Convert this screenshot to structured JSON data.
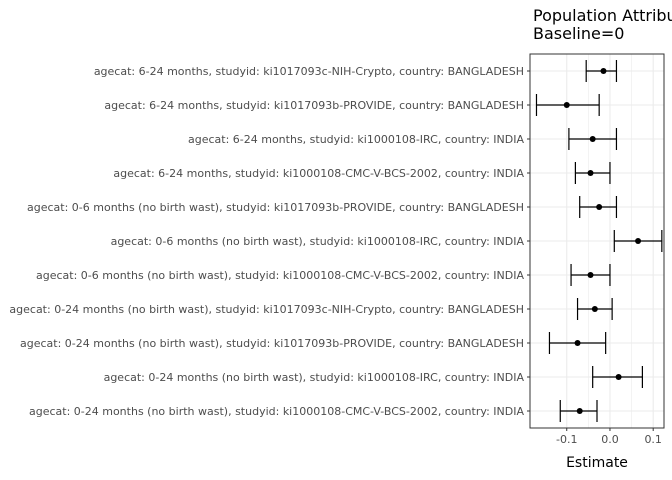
{
  "chart_data": {
    "type": "forest",
    "title_lines": [
      "Population Attributable",
      "Baseline=0"
    ],
    "xlabel": "Estimate",
    "ylabel": "",
    "xlim": [
      -0.185,
      0.125
    ],
    "x_ticks": [
      -0.1,
      0.0,
      0.1
    ],
    "x_tick_labels": [
      "-0.1",
      "0.0",
      "0.1"
    ],
    "grid": true,
    "colors": {
      "grid": "#ebebeb",
      "panel_border": "#333333",
      "point": "#000000"
    },
    "rows": [
      {
        "label": "agecat: 6-24 months, studyid: ki1017093c-NIH-Crypto, country: BANGLADESH",
        "estimate": -0.015,
        "lower": -0.055,
        "upper": 0.015
      },
      {
        "label": "agecat: 6-24 months, studyid: ki1017093b-PROVIDE, country: BANGLADESH",
        "estimate": -0.1,
        "lower": -0.17,
        "upper": -0.025
      },
      {
        "label": "agecat: 6-24 months, studyid: ki1000108-IRC, country: INDIA",
        "estimate": -0.04,
        "lower": -0.095,
        "upper": 0.015
      },
      {
        "label": "agecat: 6-24 months, studyid: ki1000108-CMC-V-BCS-2002, country: INDIA",
        "estimate": -0.045,
        "lower": -0.08,
        "upper": 0.0
      },
      {
        "label": "agecat: 0-6 months (no birth wast), studyid: ki1017093b-PROVIDE, country: BANGLADESH",
        "estimate": -0.025,
        "lower": -0.07,
        "upper": 0.015
      },
      {
        "label": "agecat: 0-6 months (no birth wast), studyid: ki1000108-IRC, country: INDIA",
        "estimate": 0.065,
        "lower": 0.01,
        "upper": 0.12
      },
      {
        "label": "agecat: 0-6 months (no birth wast), studyid: ki1000108-CMC-V-BCS-2002, country: INDIA",
        "estimate": -0.045,
        "lower": -0.09,
        "upper": 0.0
      },
      {
        "label": "agecat: 0-24 months (no birth wast), studyid: ki1017093c-NIH-Crypto, country: BANGLADESH",
        "estimate": -0.035,
        "lower": -0.075,
        "upper": 0.005
      },
      {
        "label": "agecat: 0-24 months (no birth wast), studyid: ki1017093b-PROVIDE, country: BANGLADESH",
        "estimate": -0.075,
        "lower": -0.14,
        "upper": -0.01
      },
      {
        "label": "agecat: 0-24 months (no birth wast), studyid: ki1000108-IRC, country: INDIA",
        "estimate": 0.02,
        "lower": -0.04,
        "upper": 0.075
      },
      {
        "label": "agecat: 0-24 months (no birth wast), studyid: ki1000108-CMC-V-BCS-2002, country: INDIA",
        "estimate": -0.07,
        "lower": -0.115,
        "upper": -0.03
      }
    ]
  }
}
